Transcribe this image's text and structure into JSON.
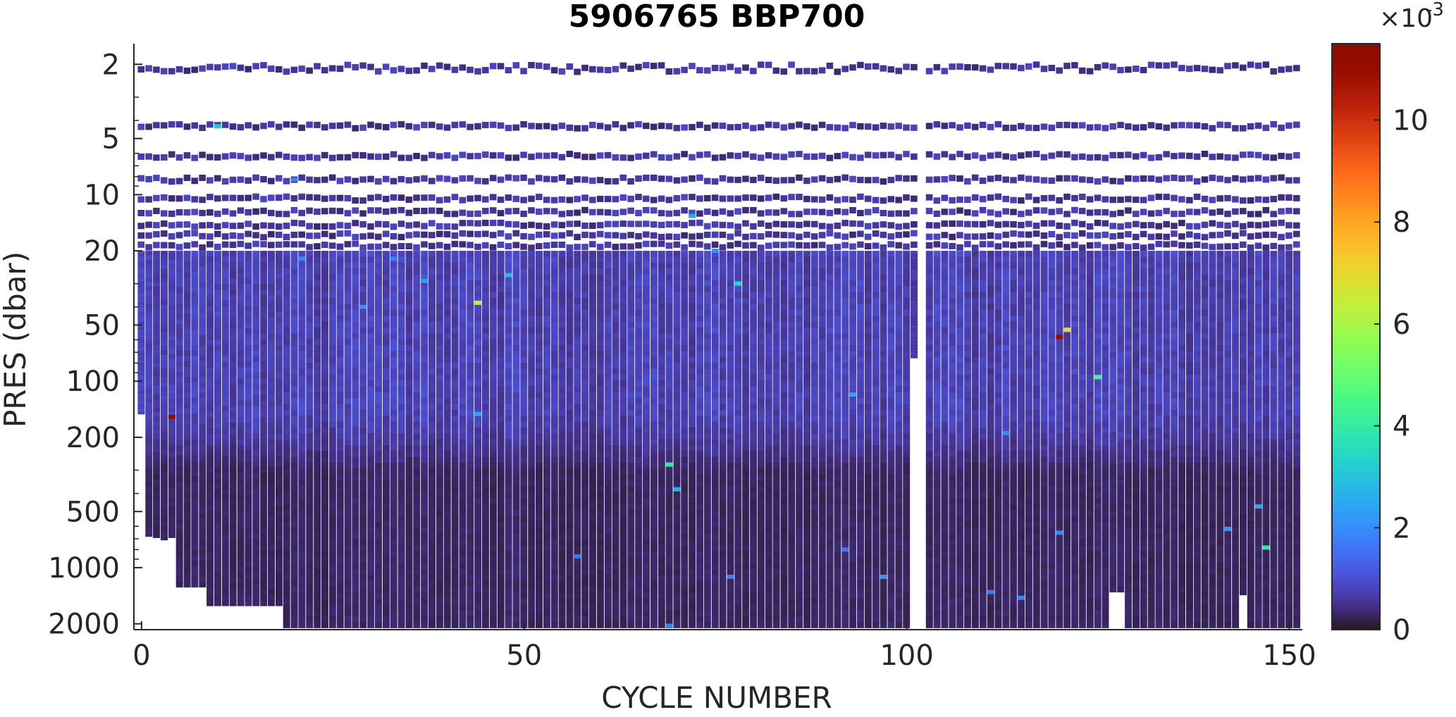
{
  "chart_data": {
    "type": "heatmap",
    "title": "5906765 BBP700",
    "xlabel": "CYCLE NUMBER",
    "ylabel": "PRES (dbar)",
    "x_range": [
      -1,
      151.7
    ],
    "y_range": [
      1.55,
      2150
    ],
    "y_scale": "log",
    "x_ticks": [
      0,
      50,
      100,
      150
    ],
    "x_tick_labels": [
      "0",
      "50",
      "100",
      "150"
    ],
    "y_ticks": [
      2,
      5,
      10,
      20,
      50,
      100,
      200,
      500,
      1000,
      2000
    ],
    "y_tick_labels": [
      "2",
      "5",
      "10",
      "20",
      "50",
      "100",
      "200",
      "500",
      "1000",
      "2000"
    ],
    "colorbar": {
      "colormap": "turbo",
      "range": [
        0,
        0.0115
      ],
      "ticks": [
        0,
        2,
        4,
        6,
        8,
        10
      ],
      "tick_labels": [
        "0",
        "2",
        "4",
        "6",
        "8",
        "10"
      ],
      "exponent_label": "×10",
      "exponent_power": "-3",
      "placement": "right"
    },
    "cycles": {
      "first": 0,
      "last": 151,
      "missing": [
        102
      ]
    },
    "surface_sampling_levels_dbar": [
      2.1,
      4.3,
      6.2,
      8.3,
      10.5,
      12.4,
      14.5,
      16.5,
      18.8
    ],
    "continuous_profile_top_dbar": 20,
    "typical_values": {
      "surface_0_20_dbar": 0.0006,
      "upper_20_150_dbar": 0.00075,
      "deep_below_300_dbar": 0.00028
    },
    "max_depth_by_cycle_dbar": [
      {
        "from": 0,
        "to": 0,
        "max_pres": 150
      },
      {
        "from": 1,
        "to": 1,
        "max_pres": 680
      },
      {
        "from": 2,
        "to": 2,
        "max_pres": 690
      },
      {
        "from": 3,
        "to": 3,
        "max_pres": 710
      },
      {
        "from": 4,
        "to": 4,
        "max_pres": 690
      },
      {
        "from": 5,
        "to": 8,
        "max_pres": 1270
      },
      {
        "from": 9,
        "to": 18,
        "max_pres": 1600
      },
      {
        "from": 19,
        "to": 101,
        "max_pres": 2100
      },
      {
        "from": 103,
        "to": 103,
        "max_pres": 2100
      },
      {
        "from": 104,
        "to": 126,
        "max_pres": 2100
      },
      {
        "from": 127,
        "to": 128,
        "max_pres": 1350
      },
      {
        "from": 129,
        "to": 143,
        "max_pres": 2100
      },
      {
        "from": 144,
        "to": 144,
        "max_pres": 1400
      },
      {
        "from": 145,
        "to": 151,
        "max_pres": 2100
      }
    ],
    "partial_profiles": [
      {
        "cycle": 101,
        "max_pres": 75
      }
    ],
    "hotspots": [
      {
        "cycle": 4,
        "pres": 155,
        "value": 0.0112
      },
      {
        "cycle": 10,
        "pres": 4.3,
        "value": 0.0032
      },
      {
        "cycle": 20,
        "pres": 8.3,
        "value": 0.0018
      },
      {
        "cycle": 21,
        "pres": 22,
        "value": 0.0019
      },
      {
        "cycle": 33,
        "pres": 22,
        "value": 0.0018
      },
      {
        "cycle": 29,
        "pres": 40,
        "value": 0.0021
      },
      {
        "cycle": 37,
        "pres": 29,
        "value": 0.0022
      },
      {
        "cycle": 44,
        "pres": 38,
        "value": 0.0062
      },
      {
        "cycle": 48,
        "pres": 27,
        "value": 0.0028
      },
      {
        "cycle": 44,
        "pres": 150,
        "value": 0.0024
      },
      {
        "cycle": 69,
        "pres": 280,
        "value": 0.0039
      },
      {
        "cycle": 70,
        "pres": 380,
        "value": 0.0026
      },
      {
        "cycle": 72,
        "pres": 13,
        "value": 0.0025
      },
      {
        "cycle": 75,
        "pres": 20,
        "value": 0.0021
      },
      {
        "cycle": 78,
        "pres": 30,
        "value": 0.0034
      },
      {
        "cycle": 93,
        "pres": 118,
        "value": 0.0024
      },
      {
        "cycle": 120,
        "pres": 58,
        "value": 0.0113
      },
      {
        "cycle": 121,
        "pres": 53,
        "value": 0.0068
      },
      {
        "cycle": 125,
        "pres": 95,
        "value": 0.0044
      },
      {
        "cycle": 113,
        "pres": 190,
        "value": 0.0019
      },
      {
        "cycle": 142,
        "pres": 620,
        "value": 0.0022
      },
      {
        "cycle": 146,
        "pres": 470,
        "value": 0.0024
      },
      {
        "cycle": 147,
        "pres": 780,
        "value": 0.0038
      },
      {
        "cycle": 120,
        "pres": 650,
        "value": 0.0019
      },
      {
        "cycle": 97,
        "pres": 1120,
        "value": 0.002
      },
      {
        "cycle": 69,
        "pres": 2050,
        "value": 0.0018
      },
      {
        "cycle": 111,
        "pres": 1350,
        "value": 0.0017
      },
      {
        "cycle": 115,
        "pres": 1450,
        "value": 0.0019
      },
      {
        "cycle": 77,
        "pres": 1120,
        "value": 0.0018
      },
      {
        "cycle": 92,
        "pres": 800,
        "value": 0.0016
      },
      {
        "cycle": 57,
        "pres": 870,
        "value": 0.0016
      }
    ]
  }
}
